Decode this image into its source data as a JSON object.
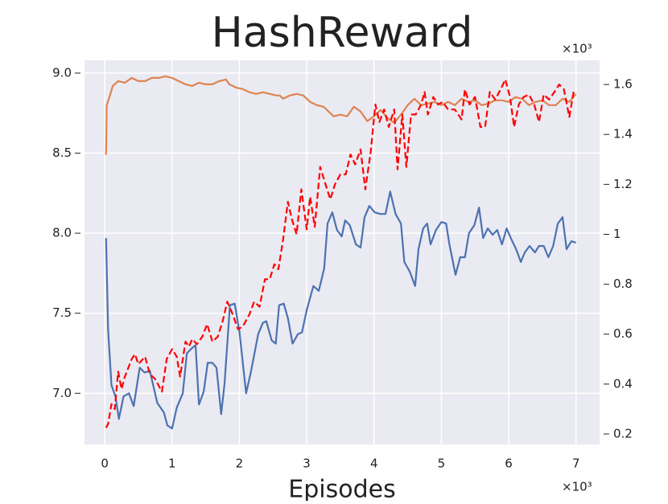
{
  "chart_data": {
    "type": "line",
    "title": "HashReward",
    "x_label": "Episodes",
    "x_offset_label": "×10³",
    "y2_offset_label": "×10³",
    "xlim": [
      -0.3,
      7.35
    ],
    "xticks": [
      0,
      1,
      2,
      3,
      4,
      5,
      6,
      7
    ],
    "ylim": [
      6.68,
      9.08
    ],
    "yticks": [
      {
        "value": 7,
        "label": "7.0"
      },
      7.5,
      {
        "value": 8,
        "label": "8.0"
      },
      8.5,
      {
        "value": 9,
        "label": "9.0"
      }
    ],
    "y2lim": [
      0.158,
      1.697
    ],
    "y2ticks": [
      0.2,
      0.4,
      0.6,
      0.8,
      1.0,
      1.2,
      1.4,
      1.6
    ],
    "grid": true,
    "series": [
      {
        "color": "#4c72b0",
        "dashed": false,
        "x": [
          0.02,
          0.05,
          0.1,
          0.16,
          0.21,
          0.28,
          0.36,
          0.43,
          0.52,
          0.59,
          0.67,
          0.78,
          0.88,
          0.93,
          1.0,
          1.07,
          1.16,
          1.22,
          1.29,
          1.35,
          1.4,
          1.47,
          1.53,
          1.6,
          1.66,
          1.73,
          1.78,
          1.86,
          1.93,
          2.0,
          2.1,
          2.17,
          2.28,
          2.35,
          2.4,
          2.48,
          2.54,
          2.59,
          2.66,
          2.72,
          2.79,
          2.87,
          2.93,
          3.0,
          3.1,
          3.18,
          3.26,
          3.31,
          3.38,
          3.45,
          3.52,
          3.57,
          3.64,
          3.73,
          3.8,
          3.86,
          3.93,
          4.01,
          4.09,
          4.17,
          4.24,
          4.32,
          4.4,
          4.45,
          4.53,
          4.61,
          4.66,
          4.73,
          4.79,
          4.84,
          4.92,
          5.0,
          5.07,
          5.12,
          5.21,
          5.28,
          5.35,
          5.41,
          5.49,
          5.56,
          5.62,
          5.69,
          5.76,
          5.83,
          5.9,
          5.97,
          6.03,
          6.11,
          6.18,
          6.24,
          6.31,
          6.39,
          6.45,
          6.52,
          6.59,
          6.66,
          6.73,
          6.8,
          6.86,
          6.93,
          7.0
        ],
        "values": [
          7.97,
          7.4,
          7.05,
          6.98,
          6.84,
          6.98,
          7.0,
          6.92,
          7.16,
          7.13,
          7.14,
          6.94,
          6.88,
          6.8,
          6.78,
          6.91,
          7.0,
          7.25,
          7.28,
          7.3,
          6.93,
          7.01,
          7.19,
          7.19,
          7.16,
          6.87,
          7.06,
          7.55,
          7.56,
          7.39,
          7.0,
          7.13,
          7.37,
          7.44,
          7.45,
          7.33,
          7.31,
          7.55,
          7.56,
          7.47,
          7.31,
          7.37,
          7.38,
          7.52,
          7.67,
          7.64,
          7.78,
          8.06,
          8.13,
          8.02,
          7.98,
          8.08,
          8.05,
          7.93,
          7.91,
          8.1,
          8.17,
          8.13,
          8.12,
          8.12,
          8.26,
          8.12,
          8.06,
          7.82,
          7.76,
          7.67,
          7.9,
          8.03,
          8.06,
          7.93,
          8.02,
          8.07,
          8.06,
          7.93,
          7.74,
          7.85,
          7.85,
          8.0,
          8.05,
          8.16,
          7.97,
          8.03,
          7.99,
          8.02,
          7.93,
          8.03,
          7.97,
          7.9,
          7.82,
          7.88,
          7.92,
          7.88,
          7.92,
          7.92,
          7.85,
          7.92,
          8.06,
          8.1,
          7.9,
          7.95,
          7.94
        ]
      },
      {
        "color": "#dd8452",
        "dashed": false,
        "x": [
          0.02,
          0.03,
          0.07,
          0.12,
          0.2,
          0.3,
          0.4,
          0.5,
          0.6,
          0.7,
          0.8,
          0.9,
          1.0,
          1.1,
          1.2,
          1.3,
          1.4,
          1.5,
          1.6,
          1.7,
          1.8,
          1.85,
          1.95,
          2.05,
          2.15,
          2.25,
          2.35,
          2.45,
          2.55,
          2.6,
          2.65,
          2.75,
          2.85,
          2.95,
          3.05,
          3.15,
          3.25,
          3.3,
          3.4,
          3.5,
          3.6,
          3.7,
          3.8,
          3.9,
          4.0,
          4.1,
          4.2,
          4.3,
          4.4,
          4.5,
          4.6,
          4.7,
          4.8,
          4.9,
          5.0,
          5.1,
          5.2,
          5.3,
          5.4,
          5.5,
          5.6,
          5.7,
          5.8,
          5.9,
          6.0,
          6.1,
          6.2,
          6.3,
          6.4,
          6.5,
          6.6,
          6.7,
          6.8,
          6.9,
          7.0
        ],
        "values": [
          8.49,
          8.8,
          8.85,
          8.92,
          8.95,
          8.94,
          8.97,
          8.95,
          8.95,
          8.97,
          8.97,
          8.98,
          8.97,
          8.95,
          8.93,
          8.92,
          8.94,
          8.93,
          8.93,
          8.95,
          8.96,
          8.93,
          8.91,
          8.9,
          8.88,
          8.87,
          8.88,
          8.87,
          8.86,
          8.86,
          8.84,
          8.86,
          8.87,
          8.86,
          8.82,
          8.8,
          8.79,
          8.77,
          8.73,
          8.74,
          8.73,
          8.79,
          8.76,
          8.7,
          8.73,
          8.77,
          8.72,
          8.69,
          8.74,
          8.8,
          8.84,
          8.8,
          8.81,
          8.82,
          8.8,
          8.82,
          8.8,
          8.84,
          8.82,
          8.83,
          8.8,
          8.81,
          8.83,
          8.83,
          8.82,
          8.85,
          8.84,
          8.8,
          8.82,
          8.83,
          8.8,
          8.8,
          8.84,
          8.82,
          8.87
        ]
      },
      {
        "color": "#ff0000",
        "dashed": true,
        "axis": "y2",
        "x": [
          0.02,
          0.05,
          0.1,
          0.15,
          0.2,
          0.25,
          0.3,
          0.4,
          0.45,
          0.5,
          0.6,
          0.67,
          0.75,
          0.85,
          0.92,
          1.0,
          1.07,
          1.12,
          1.2,
          1.25,
          1.3,
          1.37,
          1.45,
          1.52,
          1.6,
          1.68,
          1.75,
          1.82,
          1.9,
          1.98,
          2.05,
          2.15,
          2.22,
          2.3,
          2.38,
          2.45,
          2.52,
          2.58,
          2.65,
          2.72,
          2.78,
          2.85,
          2.92,
          3.0,
          3.05,
          3.12,
          3.2,
          3.28,
          3.35,
          3.42,
          3.5,
          3.58,
          3.65,
          3.72,
          3.8,
          3.87,
          3.95,
          4.02,
          4.08,
          4.15,
          4.22,
          4.3,
          4.35,
          4.42,
          4.48,
          4.55,
          4.62,
          4.7,
          4.75,
          4.8,
          4.88,
          4.95,
          5.02,
          5.1,
          5.2,
          5.3,
          5.35,
          5.42,
          5.5,
          5.58,
          5.65,
          5.72,
          5.8,
          5.88,
          5.95,
          6.02,
          6.08,
          6.15,
          6.22,
          6.3,
          6.38,
          6.45,
          6.52,
          6.6,
          6.68,
          6.75,
          6.82,
          6.9,
          6.97
        ],
        "values": [
          0.225,
          0.24,
          0.32,
          0.3,
          0.45,
          0.38,
          0.43,
          0.5,
          0.52,
          0.48,
          0.51,
          0.44,
          0.42,
          0.37,
          0.5,
          0.54,
          0.51,
          0.43,
          0.57,
          0.55,
          0.58,
          0.56,
          0.59,
          0.64,
          0.57,
          0.59,
          0.65,
          0.73,
          0.68,
          0.62,
          0.63,
          0.68,
          0.73,
          0.71,
          0.82,
          0.82,
          0.88,
          0.86,
          0.98,
          1.13,
          1.06,
          1.0,
          1.18,
          1.02,
          1.15,
          1.03,
          1.27,
          1.2,
          1.14,
          1.2,
          1.24,
          1.24,
          1.32,
          1.28,
          1.34,
          1.18,
          1.33,
          1.52,
          1.45,
          1.5,
          1.43,
          1.5,
          1.26,
          1.48,
          1.27,
          1.48,
          1.48,
          1.52,
          1.57,
          1.48,
          1.55,
          1.52,
          1.53,
          1.5,
          1.5,
          1.46,
          1.58,
          1.52,
          1.55,
          1.43,
          1.43,
          1.57,
          1.54,
          1.58,
          1.62,
          1.55,
          1.43,
          1.52,
          1.55,
          1.56,
          1.52,
          1.45,
          1.56,
          1.54,
          1.57,
          1.6,
          1.58,
          1.47,
          1.58
        ]
      }
    ]
  }
}
